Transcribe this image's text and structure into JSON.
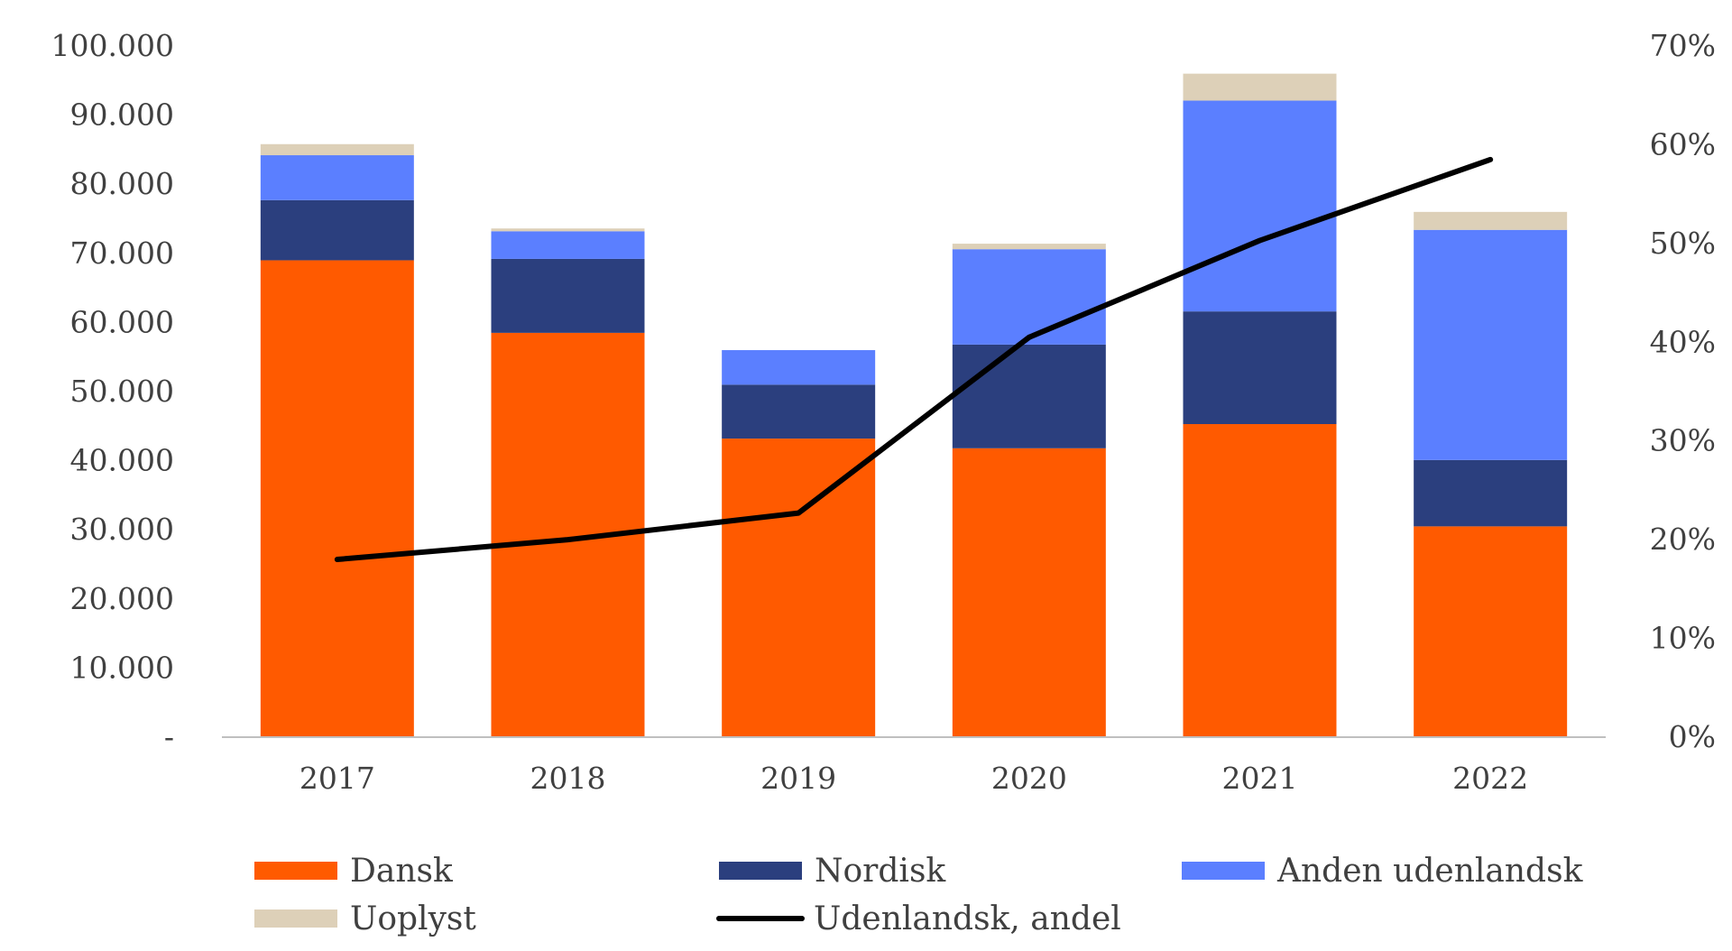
{
  "chart_data": {
    "type": "bar",
    "stacked": true,
    "categories": [
      "2017",
      "2018",
      "2019",
      "2020",
      "2021",
      "2022"
    ],
    "series": [
      {
        "name": "Dansk",
        "color": "#FF5A00",
        "values": [
          69000,
          58500,
          43200,
          41800,
          45300,
          30500
        ]
      },
      {
        "name": "Nordisk",
        "color": "#2B3F7E",
        "values": [
          8700,
          10700,
          7800,
          15000,
          16300,
          9600
        ]
      },
      {
        "name": "Anden udenlandsk",
        "color": "#5B7FFF",
        "values": [
          6500,
          4000,
          5000,
          13800,
          30500,
          33300
        ]
      },
      {
        "name": "Uoplyst",
        "color": "#DDD0B8",
        "values": [
          1600,
          400,
          0,
          800,
          3900,
          2600
        ]
      }
    ],
    "line": {
      "name": "Udenlandsk, andel",
      "color": "#000000",
      "axis": "right",
      "values": [
        18,
        20,
        22.7,
        40.5,
        50.3,
        58.5
      ]
    },
    "yLeft": {
      "min": 0,
      "max": 100000,
      "ticks": [
        {
          "value": 0,
          "label": "-"
        },
        {
          "value": 10000,
          "label": "10.000"
        },
        {
          "value": 20000,
          "label": "20.000"
        },
        {
          "value": 30000,
          "label": "30.000"
        },
        {
          "value": 40000,
          "label": "40.000"
        },
        {
          "value": 50000,
          "label": "50.000"
        },
        {
          "value": 60000,
          "label": "60.000"
        },
        {
          "value": 70000,
          "label": "70.000"
        },
        {
          "value": 80000,
          "label": "80.000"
        },
        {
          "value": 90000,
          "label": "90.000"
        },
        {
          "value": 100000,
          "label": "100.000"
        }
      ]
    },
    "yRight": {
      "min": 0,
      "max": 70,
      "ticks": [
        {
          "value": 0,
          "label": "0%"
        },
        {
          "value": 10,
          "label": "10%"
        },
        {
          "value": 20,
          "label": "20%"
        },
        {
          "value": 30,
          "label": "30%"
        },
        {
          "value": 40,
          "label": "40%"
        },
        {
          "value": 50,
          "label": "50%"
        },
        {
          "value": 60,
          "label": "60%"
        },
        {
          "value": 70,
          "label": "70%"
        }
      ]
    },
    "legend": {
      "position": "bottom",
      "items": [
        {
          "label": "Dansk",
          "color": "#FF5A00",
          "kind": "bar"
        },
        {
          "label": "Nordisk",
          "color": "#2B3F7E",
          "kind": "bar"
        },
        {
          "label": "Anden udenlandsk",
          "color": "#5B7FFF",
          "kind": "bar"
        },
        {
          "label": "Uoplyst",
          "color": "#DDD0B8",
          "kind": "bar"
        },
        {
          "label": "Udenlandsk, andel",
          "color": "#000000",
          "kind": "line"
        }
      ]
    }
  }
}
